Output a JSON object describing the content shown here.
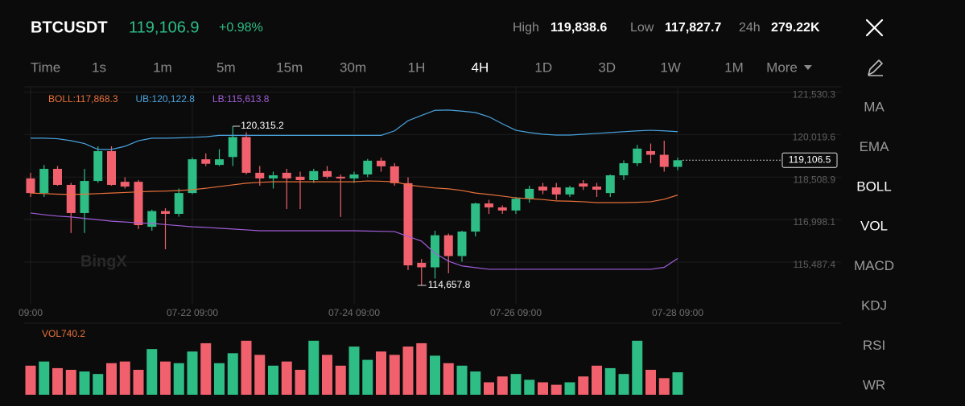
{
  "header": {
    "symbol": "BTCUSDT",
    "price": "119,106.9",
    "change": "+0.98%",
    "stats": [
      {
        "label": "High",
        "value": "119,838.6"
      },
      {
        "label": "Low",
        "value": "117,827.7"
      },
      {
        "label": "24h",
        "value": "279.22K"
      }
    ]
  },
  "timeframes": {
    "items": [
      "Time",
      "1s",
      "1m",
      "5m",
      "15m",
      "30m",
      "1H",
      "4H",
      "1D",
      "3D",
      "1W",
      "1M",
      "More"
    ],
    "active": "4H"
  },
  "indicators": {
    "items": [
      "MA",
      "EMA",
      "BOLL",
      "VOL",
      "MACD",
      "KDJ",
      "RSI",
      "WR"
    ],
    "active": [
      "BOLL",
      "VOL"
    ]
  },
  "watermark": "BingX",
  "chart_data": [
    {
      "type": "candlestick",
      "up_color": "#2ebd85",
      "down_color": "#f0616d",
      "categories": [
        "09:00",
        null,
        null,
        null,
        null,
        null,
        null,
        null,
        null,
        null,
        null,
        null,
        "07-22 09:00",
        null,
        null,
        null,
        null,
        null,
        null,
        null,
        null,
        null,
        null,
        null,
        "07-24 09:00",
        null,
        null,
        null,
        null,
        null,
        null,
        null,
        null,
        null,
        null,
        null,
        "07-26 09:00",
        null,
        null,
        null,
        null,
        null,
        null,
        null,
        null,
        null,
        null,
        null,
        "07-28 09:00"
      ],
      "open": [
        118460,
        117940,
        118800,
        118230,
        117230,
        118370,
        119430,
        118340,
        118340,
        116740,
        117300,
        117200,
        117940,
        119140,
        118940,
        119220,
        119930,
        118660,
        118460,
        118660,
        118520,
        118400,
        118720,
        118520,
        118460,
        118600,
        119090,
        118890,
        118290,
        115460,
        115300,
        116440,
        115700,
        116570,
        117570,
        117430,
        117320,
        117740,
        118170,
        118140,
        117890,
        118280,
        118170,
        117940,
        118570,
        119000,
        119430,
        119300,
        118870
      ],
      "high": [
        118660,
        118940,
        118900,
        118300,
        118800,
        119600,
        119600,
        118500,
        118400,
        117350,
        117400,
        118100,
        119200,
        119350,
        119500,
        120315.2,
        120100,
        118900,
        118700,
        118800,
        118700,
        118800,
        118900,
        118600,
        118700,
        119150,
        119200,
        119000,
        118500,
        115600,
        116600,
        116500,
        116600,
        117600,
        117700,
        117500,
        117800,
        118200,
        118300,
        118300,
        118200,
        118400,
        118300,
        118600,
        119100,
        119650,
        119700,
        119800,
        119200
      ],
      "low": [
        117800,
        117800,
        118200,
        116520,
        116520,
        118300,
        118200,
        118100,
        116660,
        116600,
        115940,
        117100,
        117900,
        118900,
        118900,
        118900,
        118600,
        118200,
        118100,
        117370,
        117370,
        118300,
        118450,
        117090,
        118300,
        118500,
        118700,
        118200,
        115200,
        114657.8,
        114900,
        115090,
        115500,
        116400,
        117200,
        117200,
        117200,
        117600,
        117900,
        117700,
        117800,
        118050,
        117800,
        117800,
        118400,
        118900,
        119000,
        118700,
        118750
      ],
      "close": [
        117940,
        118800,
        118230,
        117230,
        118370,
        119430,
        118230,
        118170,
        116800,
        117300,
        117200,
        117940,
        119140,
        118980,
        119140,
        119930,
        118660,
        118460,
        118570,
        118460,
        118400,
        118720,
        118520,
        118460,
        118600,
        119090,
        118890,
        118290,
        115370,
        115300,
        116440,
        115700,
        116570,
        117570,
        117430,
        117320,
        117740,
        118090,
        118030,
        117890,
        118140,
        118170,
        118060,
        118570,
        119000,
        119520,
        119300,
        118870,
        119106.5
      ],
      "series": [
        {
          "name": "BOLL:117,868.3",
          "color": "#e8703a",
          "values": [
            117940,
            117920,
            117900,
            117890,
            117900,
            117920,
            117940,
            117960,
            117980,
            118000,
            118010,
            118030,
            118060,
            118110,
            118170,
            118230,
            118290,
            118320,
            118340,
            118340,
            118340,
            118340,
            118340,
            118340,
            118340,
            118370,
            118360,
            118340,
            118230,
            118170,
            118120,
            118090,
            118030,
            117940,
            117890,
            117830,
            117770,
            117740,
            117710,
            117660,
            117650,
            117630,
            117600,
            117600,
            117600,
            117610,
            117630,
            117720,
            117868.3
          ]
        },
        {
          "name": "UB:120,122.8",
          "color": "#4aa3df",
          "values": [
            119890,
            119890,
            119870,
            119800,
            119700,
            119490,
            119490,
            119600,
            119800,
            119890,
            119890,
            119900,
            119920,
            119940,
            119990,
            119990,
            119990,
            119990,
            119990,
            119990,
            119990,
            119990,
            119990,
            119990,
            119990,
            119990,
            119990,
            120150,
            120510,
            120700,
            120880,
            120890,
            120850,
            120800,
            120650,
            120400,
            120170,
            120090,
            120030,
            120000,
            120000,
            120030,
            120060,
            120090,
            120120,
            120150,
            120170,
            120150,
            120122.8
          ]
        },
        {
          "name": "LB:115,613.8",
          "color": "#a05cd8",
          "values": [
            117230,
            117170,
            117120,
            117090,
            117040,
            116990,
            116940,
            116910,
            116880,
            116860,
            116820,
            116780,
            116740,
            116720,
            116690,
            116660,
            116630,
            116600,
            116600,
            116600,
            116600,
            116600,
            116600,
            116600,
            116600,
            116590,
            116580,
            116570,
            116400,
            116230,
            115800,
            115520,
            115350,
            115290,
            115230,
            115230,
            115230,
            115230,
            115230,
            115230,
            115230,
            115230,
            115230,
            115230,
            115230,
            115230,
            115230,
            115300,
            115613.8
          ]
        }
      ],
      "ylim": [
        114000,
        121715
      ],
      "yticks": [
        {
          "value": 121530.3,
          "label": "121,530.3"
        },
        {
          "value": 120019.6,
          "label": "120,019.6"
        },
        {
          "value": 118508.9,
          "label": "118,508.9"
        },
        {
          "value": 116998.1,
          "label": "116,998.1"
        },
        {
          "value": 115487.4,
          "label": "115,487.4"
        }
      ],
      "grid": true,
      "high_label": "120,315.2",
      "low_label": "114,657.8",
      "last_label": "119,106.5"
    },
    {
      "type": "bar",
      "title": "VOL740.2",
      "title_color": "#e8703a",
      "values": [
        959,
        1096,
        877,
        822,
        767,
        685,
        1041,
        1096,
        822,
        1507,
        1096,
        1041,
        1425,
        1699,
        1041,
        1370,
        1781,
        1315,
        959,
        1096,
        822,
        1781,
        1315,
        959,
        1589,
        1151,
        1425,
        1315,
        1589,
        1699,
        1288,
        1041,
        959,
        767,
        411,
        603,
        685,
        493,
        411,
        329,
        411,
        603,
        959,
        877,
        685,
        1781,
        822,
        548,
        740.2
      ],
      "ylim": [
        0,
        2200
      ]
    }
  ]
}
